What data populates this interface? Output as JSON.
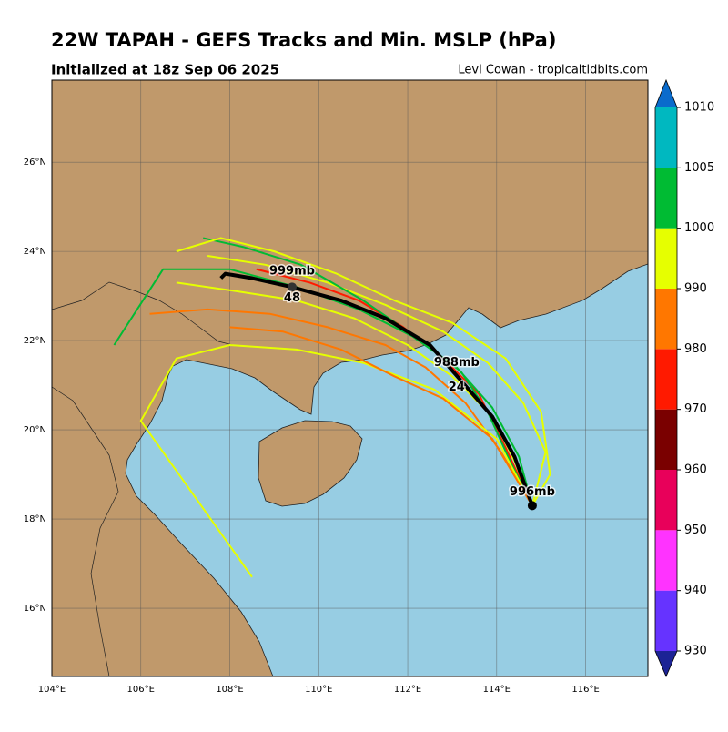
{
  "map": {
    "title": "22W TAPAH - GEFS Tracks and Min. MSLP (hPa)",
    "subtitle": "Initialized at 18z Sep 06 2025",
    "credit": "Levi Cowan - tropicaltidbits.com",
    "xlim": [
      104,
      117.4
    ],
    "ylim": [
      14.47,
      27.84
    ],
    "xticks": [
      {
        "value": 104,
        "label": "104°E"
      },
      {
        "value": 106,
        "label": "106°E"
      },
      {
        "value": 108,
        "label": "108°E"
      },
      {
        "value": 110,
        "label": "110°E"
      },
      {
        "value": 112,
        "label": "112°E"
      },
      {
        "value": 114,
        "label": "114°E"
      },
      {
        "value": 116,
        "label": "116°E"
      }
    ],
    "yticks": [
      {
        "value": 16,
        "label": "16°N"
      },
      {
        "value": 18,
        "label": "18°N"
      },
      {
        "value": 20,
        "label": "20°N"
      },
      {
        "value": 22,
        "label": "22°N"
      },
      {
        "value": 24,
        "label": "24°N"
      },
      {
        "value": 26,
        "label": "26°N"
      }
    ],
    "colorbar": {
      "ticks": [
        930,
        940,
        950,
        960,
        970,
        980,
        990,
        1000,
        1005,
        1010
      ],
      "colors": [
        "#6633ff",
        "#ff33ff",
        "#e8005a",
        "#7a0000",
        "#ff1a00",
        "#ff7700",
        "#e6ff00",
        "#00bb33",
        "#00b8c0"
      ],
      "under_color": "#1c2395",
      "over_color": "#0a6bcc"
    },
    "members": [
      {
        "color": "#e6ff00",
        "lon": [
          114.8,
          115.1,
          114.6,
          113.8,
          112.8,
          111.5,
          110.2,
          108.8,
          107.5
        ],
        "lat": [
          18.3,
          19.5,
          20.6,
          21.5,
          22.2,
          22.8,
          23.3,
          23.7,
          23.9
        ]
      },
      {
        "color": "#e6ff00",
        "lon": [
          114.8,
          114.4,
          113.9,
          113.0,
          112.0,
          110.8,
          109.5,
          108.2,
          106.8
        ],
        "lat": [
          18.3,
          19.3,
          20.3,
          21.2,
          21.9,
          22.5,
          22.9,
          23.1,
          23.3
        ]
      },
      {
        "color": "#ff7700",
        "lon": [
          114.8,
          114.1,
          113.3,
          112.4,
          111.5,
          110.2,
          108.9,
          107.5,
          106.2
        ],
        "lat": [
          18.3,
          19.5,
          20.6,
          21.4,
          21.9,
          22.3,
          22.6,
          22.7,
          22.6
        ]
      },
      {
        "color": "#ff1a00",
        "lon": [
          114.8,
          114.2,
          113.6,
          112.8,
          111.9,
          110.9,
          109.8,
          108.6
        ],
        "lat": [
          18.3,
          19.6,
          20.8,
          21.6,
          22.3,
          22.9,
          23.3,
          23.6
        ]
      },
      {
        "color": "#00bb33",
        "lon": [
          114.8,
          114.5,
          113.9,
          113.1,
          112.1,
          110.9,
          109.5,
          108.0,
          106.5,
          105.4
        ],
        "lat": [
          18.3,
          19.4,
          20.5,
          21.4,
          22.1,
          22.7,
          23.2,
          23.6,
          23.6,
          21.9
        ]
      },
      {
        "color": "#00bb33",
        "lon": [
          114.8,
          114.3,
          113.8,
          113.2,
          112.3,
          111.0,
          109.6,
          108.3,
          107.4
        ],
        "lat": [
          18.3,
          19.3,
          20.4,
          21.3,
          22.0,
          22.9,
          23.7,
          24.1,
          24.3
        ]
      },
      {
        "color": "#e6ff00",
        "lon": [
          114.8,
          114.0,
          112.6,
          111.0,
          109.5,
          108.0,
          106.8,
          106.0,
          108.5
        ],
        "lat": [
          18.3,
          19.8,
          20.9,
          21.5,
          21.8,
          21.9,
          21.6,
          20.2,
          16.7
        ]
      },
      {
        "color": "#ff7700",
        "lon": [
          114.8,
          113.9,
          112.8,
          111.7,
          110.5,
          109.2,
          108.0
        ],
        "lat": [
          18.3,
          19.8,
          20.7,
          21.2,
          21.8,
          22.2,
          22.3
        ]
      },
      {
        "color": "#e6ff00",
        "lon": [
          114.8,
          115.2,
          115.0,
          114.2,
          113.0,
          111.7,
          110.4,
          109.0,
          107.8,
          106.8
        ],
        "lat": [
          18.3,
          19.0,
          20.4,
          21.6,
          22.4,
          22.9,
          23.5,
          24.0,
          24.3,
          24.0
        ]
      }
    ],
    "mean_track": {
      "lon": [
        114.8,
        114.4,
        113.9,
        113.2,
        112.5,
        111.5,
        110.5,
        109.4,
        108.5,
        107.9,
        107.8
      ],
      "lat": [
        18.3,
        19.4,
        20.3,
        21.1,
        21.9,
        22.5,
        22.9,
        23.2,
        23.4,
        23.5,
        23.4
      ]
    },
    "annotations": [
      {
        "text": "996mb",
        "lon": 114.8,
        "lat": 18.6
      },
      {
        "text": "988mb",
        "lon": 113.1,
        "lat": 21.5
      },
      {
        "text": "24",
        "lon": 113.1,
        "lat": 20.95
      },
      {
        "text": "999mb",
        "lon": 109.4,
        "lat": 23.55
      },
      {
        "text": "48",
        "lon": 109.4,
        "lat": 22.95
      }
    ]
  }
}
